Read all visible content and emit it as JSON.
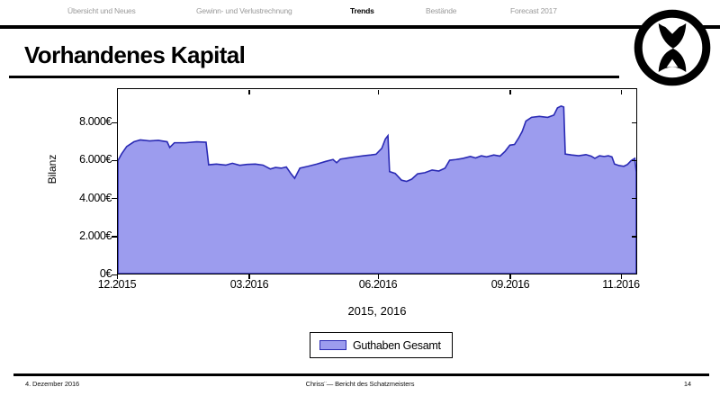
{
  "nav": {
    "items": [
      {
        "label": "Übersicht und Neues",
        "active": false
      },
      {
        "label": "Gewinn- und Verlustrechnung",
        "active": false
      },
      {
        "label": "Trends",
        "active": true
      },
      {
        "label": "Bestände",
        "active": false
      },
      {
        "label": "Forecast 2017",
        "active": false
      }
    ]
  },
  "header": {
    "title": "Vorhandenes Kapital"
  },
  "logo": {
    "icon": "hourglass-in-circle-icon"
  },
  "chart_data": {
    "type": "area",
    "title": "",
    "xlabel": "2015, 2016",
    "ylabel": "Bilanz",
    "ylim": [
      0,
      9800
    ],
    "grid": false,
    "legend_position": "below-center",
    "x_unit": "month (MM.YYYY), x given as percent of axis from 12.2015 to 11.2016",
    "yticks": [
      {
        "value": 0,
        "label": "0€"
      },
      {
        "value": 2000,
        "label": "2.000€"
      },
      {
        "value": 4000,
        "label": "4.000€"
      },
      {
        "value": 6000,
        "label": "6.000€"
      },
      {
        "value": 8000,
        "label": "8.000€"
      }
    ],
    "xticks": [
      {
        "pos_pct": 0,
        "label": "12.2015"
      },
      {
        "pos_pct": 25.4,
        "label": "03.2016"
      },
      {
        "pos_pct": 50.2,
        "label": "06.2016"
      },
      {
        "pos_pct": 75.6,
        "label": "09.2016"
      },
      {
        "pos_pct": 96.9,
        "label": "11.2016"
      }
    ],
    "legend": {
      "label": "Guthaben Gesamt"
    },
    "series": [
      {
        "name": "Guthaben Gesamt",
        "fill_color": "#9c9cee",
        "line_color": "#2a2ab4",
        "points": [
          [
            0,
            6000
          ],
          [
            0.7,
            6350
          ],
          [
            1.7,
            6750
          ],
          [
            3.1,
            7000
          ],
          [
            4.3,
            7100
          ],
          [
            6.1,
            7050
          ],
          [
            7.8,
            7080
          ],
          [
            9.5,
            7000
          ],
          [
            10,
            6700
          ],
          [
            10.9,
            6950
          ],
          [
            13,
            6950
          ],
          [
            15.2,
            7000
          ],
          [
            17,
            6980
          ],
          [
            17.5,
            5780
          ],
          [
            19,
            5820
          ],
          [
            20.8,
            5760
          ],
          [
            22.1,
            5860
          ],
          [
            23.5,
            5750
          ],
          [
            24.9,
            5800
          ],
          [
            26.5,
            5820
          ],
          [
            28,
            5760
          ],
          [
            29.4,
            5560
          ],
          [
            30.4,
            5640
          ],
          [
            31.5,
            5600
          ],
          [
            32.5,
            5660
          ],
          [
            33.4,
            5300
          ],
          [
            34.1,
            5060
          ],
          [
            35.1,
            5600
          ],
          [
            36.7,
            5700
          ],
          [
            38.4,
            5820
          ],
          [
            40.1,
            5960
          ],
          [
            41.5,
            6060
          ],
          [
            42.2,
            5890
          ],
          [
            42.9,
            6080
          ],
          [
            44.3,
            6140
          ],
          [
            45.8,
            6200
          ],
          [
            47.4,
            6260
          ],
          [
            48.8,
            6300
          ],
          [
            49.8,
            6340
          ],
          [
            50.9,
            6650
          ],
          [
            51.6,
            7150
          ],
          [
            52.1,
            7330
          ],
          [
            52.4,
            5420
          ],
          [
            53.5,
            5320
          ],
          [
            54.7,
            4960
          ],
          [
            55.7,
            4900
          ],
          [
            56.7,
            5020
          ],
          [
            57.8,
            5300
          ],
          [
            59.2,
            5360
          ],
          [
            60.6,
            5500
          ],
          [
            61.9,
            5450
          ],
          [
            63.1,
            5600
          ],
          [
            64,
            6020
          ],
          [
            65.2,
            6060
          ],
          [
            66.6,
            6120
          ],
          [
            68,
            6220
          ],
          [
            69,
            6140
          ],
          [
            70.1,
            6260
          ],
          [
            71.1,
            6200
          ],
          [
            72.5,
            6300
          ],
          [
            73.7,
            6240
          ],
          [
            74.7,
            6500
          ],
          [
            75.6,
            6820
          ],
          [
            76.5,
            6860
          ],
          [
            77.3,
            7200
          ],
          [
            78,
            7550
          ],
          [
            78.7,
            8100
          ],
          [
            79.8,
            8300
          ],
          [
            81.3,
            8350
          ],
          [
            82.9,
            8300
          ],
          [
            84.1,
            8420
          ],
          [
            84.8,
            8800
          ],
          [
            85.5,
            8900
          ],
          [
            86,
            8850
          ],
          [
            86.3,
            6350
          ],
          [
            87.5,
            6300
          ],
          [
            88.9,
            6260
          ],
          [
            90.3,
            6320
          ],
          [
            91.3,
            6240
          ],
          [
            92,
            6120
          ],
          [
            92.9,
            6260
          ],
          [
            93.8,
            6220
          ],
          [
            94.6,
            6260
          ],
          [
            95.3,
            6200
          ],
          [
            95.8,
            5820
          ],
          [
            96.7,
            5740
          ],
          [
            97.6,
            5700
          ],
          [
            98.3,
            5800
          ],
          [
            99,
            6000
          ],
          [
            99.7,
            6120
          ],
          [
            100,
            5400
          ]
        ]
      }
    ]
  },
  "footer": {
    "date": "4. Dezember 2016",
    "center": "Chriss¨— Bericht des Schatzmeisters",
    "page": "14"
  }
}
